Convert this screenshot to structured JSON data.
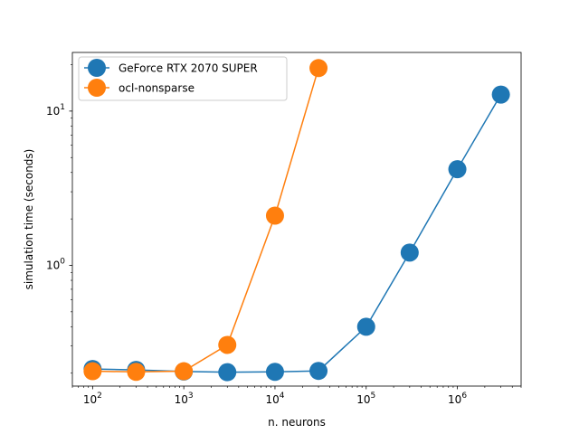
{
  "chart_data": {
    "type": "line",
    "title": "",
    "xlabel": "n. neurons",
    "ylabel": "simulation time (seconds)",
    "xscale": "log",
    "yscale": "log",
    "xlim": [
      60,
      5000000
    ],
    "ylim": [
      0.165,
      24
    ],
    "grid": false,
    "legend_position": "top-left",
    "x_ticks": [
      {
        "value": 100,
        "base": "10",
        "exp": "2"
      },
      {
        "value": 1000,
        "base": "10",
        "exp": "3"
      },
      {
        "value": 10000,
        "base": "10",
        "exp": "4"
      },
      {
        "value": 100000,
        "base": "10",
        "exp": "5"
      },
      {
        "value": 1000000,
        "base": "10",
        "exp": "6"
      }
    ],
    "y_ticks": [
      {
        "value": 1,
        "base": "10",
        "exp": "0"
      },
      {
        "value": 10,
        "base": "10",
        "exp": "1"
      }
    ],
    "series": [
      {
        "name": "GeForce RTX 2070 SUPER",
        "color": "#1f77b4",
        "x": [
          100,
          300,
          1000,
          3000,
          10000,
          30000,
          100000,
          300000,
          1000000,
          3000000
        ],
        "y": [
          0.213,
          0.21,
          0.205,
          0.203,
          0.204,
          0.207,
          0.4,
          1.21,
          4.2,
          12.8
        ]
      },
      {
        "name": "ocl-nonsparse",
        "color": "#ff7f0e",
        "x": [
          100,
          300,
          1000,
          3000,
          10000,
          30000
        ],
        "y": [
          0.206,
          0.204,
          0.206,
          0.305,
          2.1,
          19.0
        ]
      }
    ]
  }
}
